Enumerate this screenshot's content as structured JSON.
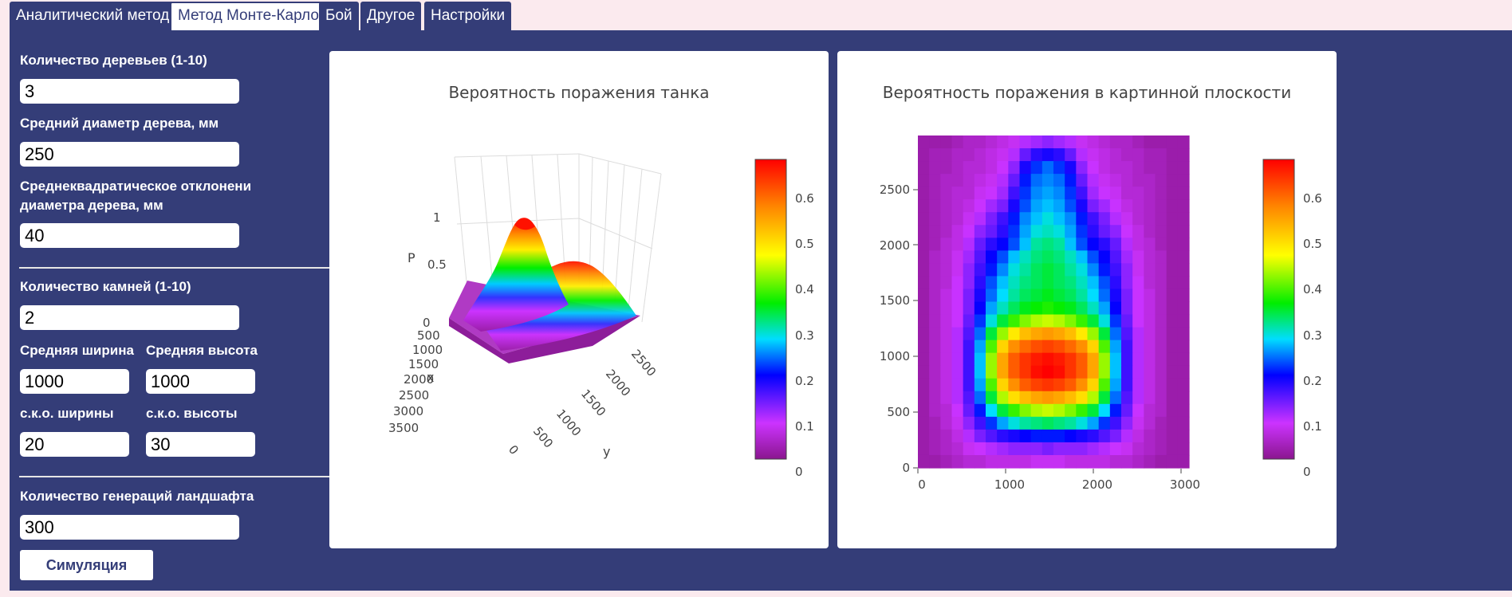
{
  "tabs": [
    {
      "label": "Аналитический метод"
    },
    {
      "label": "Метод Монте-Карло"
    },
    {
      "label": "Бой"
    },
    {
      "label": "Другое"
    },
    {
      "label": "Настройки"
    }
  ],
  "form": {
    "trees_count_label": "Количество деревьев (1-10)",
    "trees_count_value": "3",
    "tree_diameter_label": "Средний диаметр дерева, мм",
    "tree_diameter_value": "250",
    "tree_sd_label_line1": "Среднеквадратическое отклонени",
    "tree_sd_label_line2": "диаметра дерева, мм",
    "tree_sd_value": "40",
    "stones_count_label": "Количество камней (1-10)",
    "stones_count_value": "2",
    "avg_width_label": "Средняя ширина",
    "avg_width_value": "1000",
    "avg_height_label": "Средняя высота",
    "avg_height_value": "1000",
    "sd_width_label": "с.к.о. ширины",
    "sd_width_value": "20",
    "sd_height_label": "с.к.о. высоты",
    "sd_height_value": "30",
    "generations_label": "Количество генераций ландшафта",
    "generations_value": "300",
    "simulate_button": "Симуляция"
  },
  "charts": {
    "surface": {
      "title": "Вероятность поражения танка",
      "z_label": "P",
      "x_label": "x",
      "y_label": "y",
      "z_ticks": [
        "1",
        "0.5",
        "0"
      ],
      "x_ticks": [
        "500",
        "1000",
        "1500",
        "2000",
        "2500",
        "3000",
        "3500"
      ],
      "y_ticks": [
        "0",
        "500",
        "1000",
        "1500",
        "2000",
        "2500"
      ]
    },
    "heatmap": {
      "title": "Вероятность поражения в картинной плоскости",
      "x_ticks": [
        "0",
        "1000",
        "2000",
        "3000"
      ],
      "y_ticks": [
        "2500",
        "2000",
        "1500",
        "1000",
        "500",
        "0"
      ]
    }
  },
  "colorbar": {
    "ticks": [
      "0.6",
      "0.5",
      "0.4",
      "0.3",
      "0.2",
      "0.1",
      "0"
    ],
    "colors": [
      "#ff0000",
      "#ff8800",
      "#ffff00",
      "#00ee00",
      "#00ddff",
      "#0000ff",
      "#cc33ff",
      "#8a168e"
    ]
  },
  "chart_data": [
    {
      "type": "heatmap",
      "title": "Вероятность поражения танка",
      "xlabel": "x",
      "ylabel": "y",
      "zlabel": "P",
      "zlim": [
        0,
        1
      ],
      "colorscale_range": [
        0,
        0.65
      ],
      "description_peak": 0.65
    },
    {
      "type": "heatmap",
      "title": "Вероятность поражения в картинной плоскости",
      "xlim": [
        0,
        3700
      ],
      "ylim": [
        0,
        2850
      ],
      "colorscale_range": [
        0,
        0.65
      ],
      "grid": [
        [
          0.02,
          0.02,
          0.02,
          0.03,
          0.04,
          0.04,
          0.05,
          0.06,
          0.07,
          0.09,
          0.1,
          0.11,
          0.1,
          0.09,
          0.07,
          0.06,
          0.05,
          0.04,
          0.04,
          0.03,
          0.02,
          0.02,
          0.02,
          0.02
        ],
        [
          0.02,
          0.03,
          0.03,
          0.04,
          0.04,
          0.05,
          0.06,
          0.07,
          0.09,
          0.13,
          0.16,
          0.17,
          0.16,
          0.13,
          0.09,
          0.07,
          0.06,
          0.05,
          0.04,
          0.04,
          0.03,
          0.03,
          0.02,
          0.02
        ],
        [
          0.02,
          0.03,
          0.03,
          0.04,
          0.05,
          0.05,
          0.06,
          0.08,
          0.11,
          0.17,
          0.2,
          0.22,
          0.2,
          0.17,
          0.11,
          0.08,
          0.06,
          0.05,
          0.05,
          0.04,
          0.03,
          0.03,
          0.02,
          0.02
        ],
        [
          0.02,
          0.03,
          0.04,
          0.04,
          0.05,
          0.06,
          0.07,
          0.09,
          0.13,
          0.19,
          0.22,
          0.23,
          0.22,
          0.19,
          0.13,
          0.09,
          0.07,
          0.06,
          0.05,
          0.04,
          0.04,
          0.03,
          0.02,
          0.02
        ],
        [
          0.02,
          0.03,
          0.04,
          0.05,
          0.05,
          0.07,
          0.08,
          0.1,
          0.15,
          0.2,
          0.23,
          0.24,
          0.23,
          0.2,
          0.15,
          0.1,
          0.08,
          0.07,
          0.05,
          0.05,
          0.04,
          0.03,
          0.02,
          0.02
        ],
        [
          0.02,
          0.03,
          0.04,
          0.05,
          0.06,
          0.08,
          0.1,
          0.12,
          0.17,
          0.21,
          0.24,
          0.25,
          0.24,
          0.21,
          0.17,
          0.12,
          0.1,
          0.08,
          0.06,
          0.05,
          0.04,
          0.03,
          0.02,
          0.02
        ],
        [
          0.02,
          0.03,
          0.04,
          0.05,
          0.07,
          0.09,
          0.12,
          0.15,
          0.19,
          0.23,
          0.25,
          0.27,
          0.25,
          0.23,
          0.19,
          0.15,
          0.12,
          0.09,
          0.07,
          0.05,
          0.04,
          0.03,
          0.02,
          0.02
        ],
        [
          0.02,
          0.03,
          0.04,
          0.06,
          0.08,
          0.11,
          0.13,
          0.16,
          0.2,
          0.24,
          0.27,
          0.28,
          0.27,
          0.24,
          0.2,
          0.16,
          0.13,
          0.11,
          0.08,
          0.06,
          0.04,
          0.03,
          0.02,
          0.02
        ],
        [
          0.02,
          0.03,
          0.05,
          0.06,
          0.09,
          0.13,
          0.16,
          0.18,
          0.21,
          0.25,
          0.29,
          0.3,
          0.29,
          0.25,
          0.21,
          0.18,
          0.16,
          0.13,
          0.09,
          0.06,
          0.05,
          0.03,
          0.02,
          0.02
        ],
        [
          0.02,
          0.04,
          0.05,
          0.07,
          0.1,
          0.14,
          0.18,
          0.21,
          0.25,
          0.28,
          0.3,
          0.31,
          0.3,
          0.28,
          0.25,
          0.21,
          0.18,
          0.14,
          0.1,
          0.07,
          0.05,
          0.04,
          0.02,
          0.02
        ],
        [
          0.02,
          0.04,
          0.05,
          0.07,
          0.11,
          0.15,
          0.19,
          0.23,
          0.27,
          0.29,
          0.31,
          0.32,
          0.31,
          0.29,
          0.27,
          0.23,
          0.19,
          0.15,
          0.11,
          0.07,
          0.05,
          0.04,
          0.02,
          0.02
        ],
        [
          0.02,
          0.04,
          0.05,
          0.08,
          0.11,
          0.16,
          0.21,
          0.25,
          0.28,
          0.3,
          0.31,
          0.32,
          0.31,
          0.3,
          0.28,
          0.25,
          0.21,
          0.16,
          0.11,
          0.08,
          0.05,
          0.04,
          0.02,
          0.02
        ],
        [
          0.02,
          0.04,
          0.06,
          0.08,
          0.12,
          0.17,
          0.22,
          0.26,
          0.29,
          0.31,
          0.32,
          0.33,
          0.32,
          0.31,
          0.29,
          0.26,
          0.22,
          0.17,
          0.12,
          0.08,
          0.06,
          0.04,
          0.02,
          0.02
        ],
        [
          0.02,
          0.04,
          0.06,
          0.08,
          0.12,
          0.18,
          0.24,
          0.28,
          0.31,
          0.33,
          0.34,
          0.35,
          0.34,
          0.33,
          0.31,
          0.28,
          0.24,
          0.18,
          0.12,
          0.08,
          0.06,
          0.04,
          0.02,
          0.02
        ],
        [
          0.02,
          0.04,
          0.06,
          0.08,
          0.13,
          0.2,
          0.27,
          0.32,
          0.36,
          0.39,
          0.41,
          0.42,
          0.41,
          0.39,
          0.36,
          0.32,
          0.27,
          0.2,
          0.13,
          0.08,
          0.06,
          0.04,
          0.02,
          0.02
        ],
        [
          0.02,
          0.04,
          0.06,
          0.09,
          0.14,
          0.22,
          0.32,
          0.4,
          0.46,
          0.5,
          0.52,
          0.53,
          0.52,
          0.5,
          0.46,
          0.4,
          0.32,
          0.22,
          0.14,
          0.09,
          0.06,
          0.04,
          0.02,
          0.02
        ],
        [
          0.02,
          0.04,
          0.06,
          0.09,
          0.15,
          0.24,
          0.37,
          0.48,
          0.54,
          0.57,
          0.59,
          0.6,
          0.59,
          0.57,
          0.54,
          0.48,
          0.37,
          0.24,
          0.15,
          0.09,
          0.06,
          0.04,
          0.02,
          0.02
        ],
        [
          0.02,
          0.04,
          0.06,
          0.09,
          0.15,
          0.25,
          0.4,
          0.52,
          0.58,
          0.61,
          0.63,
          0.64,
          0.63,
          0.61,
          0.58,
          0.52,
          0.4,
          0.25,
          0.15,
          0.09,
          0.06,
          0.04,
          0.02,
          0.02
        ],
        [
          0.02,
          0.04,
          0.06,
          0.09,
          0.15,
          0.25,
          0.4,
          0.52,
          0.58,
          0.61,
          0.64,
          0.65,
          0.64,
          0.61,
          0.58,
          0.52,
          0.4,
          0.25,
          0.15,
          0.09,
          0.06,
          0.04,
          0.02,
          0.02
        ],
        [
          0.02,
          0.04,
          0.06,
          0.09,
          0.15,
          0.24,
          0.37,
          0.48,
          0.54,
          0.58,
          0.6,
          0.61,
          0.6,
          0.58,
          0.54,
          0.48,
          0.37,
          0.24,
          0.15,
          0.09,
          0.06,
          0.04,
          0.02,
          0.02
        ],
        [
          0.02,
          0.04,
          0.06,
          0.09,
          0.14,
          0.22,
          0.32,
          0.41,
          0.47,
          0.5,
          0.52,
          0.53,
          0.52,
          0.5,
          0.47,
          0.41,
          0.32,
          0.22,
          0.14,
          0.09,
          0.06,
          0.04,
          0.02,
          0.02
        ],
        [
          0.02,
          0.04,
          0.05,
          0.08,
          0.13,
          0.19,
          0.26,
          0.32,
          0.36,
          0.39,
          0.41,
          0.42,
          0.41,
          0.39,
          0.36,
          0.32,
          0.26,
          0.19,
          0.13,
          0.08,
          0.05,
          0.04,
          0.02,
          0.02
        ],
        [
          0.02,
          0.03,
          0.05,
          0.07,
          0.11,
          0.15,
          0.2,
          0.24,
          0.27,
          0.29,
          0.3,
          0.31,
          0.3,
          0.29,
          0.27,
          0.24,
          0.2,
          0.15,
          0.11,
          0.07,
          0.05,
          0.03,
          0.02,
          0.02
        ],
        [
          0.02,
          0.03,
          0.04,
          0.06,
          0.09,
          0.12,
          0.14,
          0.16,
          0.17,
          0.18,
          0.19,
          0.19,
          0.19,
          0.18,
          0.17,
          0.16,
          0.14,
          0.12,
          0.09,
          0.06,
          0.04,
          0.03,
          0.02,
          0.02
        ],
        [
          0.02,
          0.03,
          0.04,
          0.05,
          0.07,
          0.08,
          0.09,
          0.1,
          0.11,
          0.11,
          0.11,
          0.12,
          0.11,
          0.11,
          0.11,
          0.1,
          0.09,
          0.08,
          0.07,
          0.05,
          0.04,
          0.03,
          0.02,
          0.02
        ],
        [
          0.02,
          0.02,
          0.03,
          0.04,
          0.05,
          0.05,
          0.06,
          0.06,
          0.06,
          0.06,
          0.07,
          0.07,
          0.07,
          0.06,
          0.06,
          0.06,
          0.06,
          0.05,
          0.05,
          0.04,
          0.03,
          0.02,
          0.02,
          0.02
        ]
      ]
    }
  ]
}
